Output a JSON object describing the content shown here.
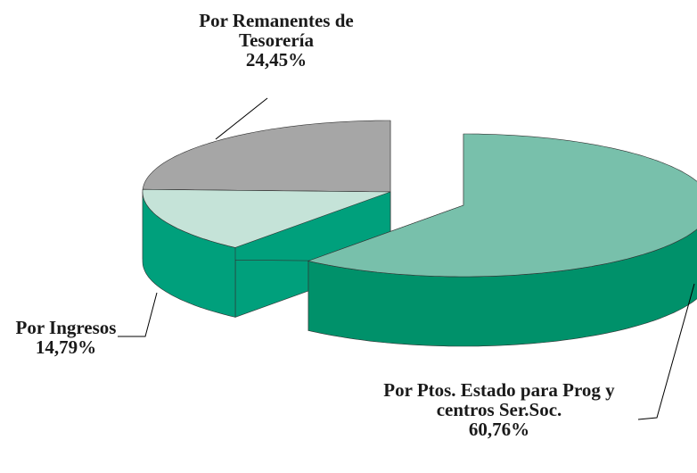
{
  "chart_data": {
    "type": "pie",
    "categories": [
      "Por Ptos. Estado para Prog y centros Ser.Soc.",
      "Por Ingresos",
      "Por Remanentes de Tesorería"
    ],
    "values": [
      60.76,
      14.79,
      24.45
    ],
    "value_labels": [
      "60,76%",
      "14,79%",
      "24,45%"
    ],
    "colors": [
      "#78c0ab",
      "#c5e3d8",
      "#a6a6a6"
    ],
    "side_colors": [
      "#00916a",
      "#00a07c",
      "#5a5a5a"
    ]
  }
}
